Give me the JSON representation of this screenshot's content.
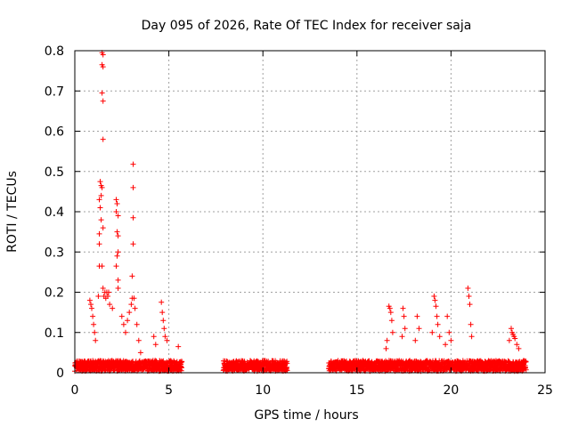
{
  "chart_data": {
    "type": "scatter",
    "title": "Day 095 of 2026, Rate Of TEC Index for receiver saja",
    "xlabel": "GPS time / hours",
    "ylabel": "ROTI / TECUs",
    "xlim": [
      0,
      25
    ],
    "ylim": [
      0,
      0.8
    ],
    "grid": true,
    "marker": "+",
    "color": "#ff0000",
    "x_ticks": [
      0,
      5,
      10,
      15,
      20,
      25
    ],
    "x_tick_labels": [
      "0",
      "5",
      "10",
      "15",
      "20",
      "25"
    ],
    "y_ticks": [
      0,
      0.1,
      0.2,
      0.3,
      0.4,
      0.5,
      0.6,
      0.7,
      0.8
    ],
    "y_tick_labels": [
      "0",
      "0.1",
      "0.2",
      "0.3",
      "0.4",
      "0.5",
      "0.6",
      "0.7",
      "0.8"
    ],
    "data_segments": [
      {
        "x_start": 0.0,
        "x_end": 5.7,
        "baseline": 0.02
      },
      {
        "x_start": 7.9,
        "x_end": 11.3,
        "baseline": 0.02
      },
      {
        "x_start": 13.5,
        "x_end": 24.0,
        "baseline": 0.02
      }
    ],
    "series": [
      {
        "name": "ROTI",
        "points": [
          [
            1.45,
            0.795
          ],
          [
            1.5,
            0.79
          ],
          [
            1.45,
            0.765
          ],
          [
            1.5,
            0.76
          ],
          [
            1.45,
            0.695
          ],
          [
            1.5,
            0.675
          ],
          [
            1.5,
            0.58
          ],
          [
            3.1,
            0.518
          ],
          [
            3.1,
            0.46
          ],
          [
            3.1,
            0.385
          ],
          [
            3.1,
            0.32
          ],
          [
            3.05,
            0.24
          ],
          [
            1.35,
            0.475
          ],
          [
            1.4,
            0.465
          ],
          [
            1.45,
            0.46
          ],
          [
            1.4,
            0.44
          ],
          [
            1.3,
            0.43
          ],
          [
            1.35,
            0.41
          ],
          [
            1.4,
            0.38
          ],
          [
            1.5,
            0.36
          ],
          [
            1.3,
            0.345
          ],
          [
            1.3,
            0.32
          ],
          [
            1.3,
            0.265
          ],
          [
            1.45,
            0.265
          ],
          [
            1.25,
            0.19
          ],
          [
            2.2,
            0.43
          ],
          [
            2.25,
            0.42
          ],
          [
            2.2,
            0.4
          ],
          [
            2.3,
            0.39
          ],
          [
            2.25,
            0.35
          ],
          [
            2.3,
            0.34
          ],
          [
            2.3,
            0.3
          ],
          [
            2.25,
            0.29
          ],
          [
            2.2,
            0.265
          ],
          [
            2.3,
            0.23
          ],
          [
            2.3,
            0.21
          ],
          [
            1.5,
            0.21
          ],
          [
            1.6,
            0.2
          ],
          [
            1.7,
            0.2
          ],
          [
            1.8,
            0.2
          ],
          [
            1.55,
            0.19
          ],
          [
            1.65,
            0.185
          ],
          [
            1.75,
            0.19
          ],
          [
            1.85,
            0.17
          ],
          [
            2.0,
            0.16
          ],
          [
            0.8,
            0.18
          ],
          [
            0.85,
            0.17
          ],
          [
            0.9,
            0.16
          ],
          [
            0.95,
            0.14
          ],
          [
            1.0,
            0.12
          ],
          [
            1.05,
            0.1
          ],
          [
            1.1,
            0.08
          ],
          [
            2.5,
            0.14
          ],
          [
            2.6,
            0.12
          ],
          [
            2.7,
            0.1
          ],
          [
            2.8,
            0.13
          ],
          [
            2.9,
            0.15
          ],
          [
            3.0,
            0.17
          ],
          [
            3.05,
            0.185
          ],
          [
            3.15,
            0.185
          ],
          [
            3.2,
            0.16
          ],
          [
            3.3,
            0.12
          ],
          [
            3.4,
            0.08
          ],
          [
            3.5,
            0.05
          ],
          [
            4.6,
            0.175
          ],
          [
            4.65,
            0.15
          ],
          [
            4.7,
            0.13
          ],
          [
            4.75,
            0.11
          ],
          [
            4.8,
            0.09
          ],
          [
            4.9,
            0.08
          ],
          [
            4.2,
            0.09
          ],
          [
            4.3,
            0.07
          ],
          [
            5.5,
            0.065
          ],
          [
            16.7,
            0.165
          ],
          [
            16.75,
            0.16
          ],
          [
            16.8,
            0.15
          ],
          [
            16.85,
            0.13
          ],
          [
            16.9,
            0.1
          ],
          [
            16.6,
            0.08
          ],
          [
            16.55,
            0.06
          ],
          [
            17.45,
            0.16
          ],
          [
            17.5,
            0.14
          ],
          [
            17.55,
            0.11
          ],
          [
            17.4,
            0.09
          ],
          [
            18.2,
            0.14
          ],
          [
            18.3,
            0.11
          ],
          [
            18.1,
            0.08
          ],
          [
            19.1,
            0.19
          ],
          [
            19.15,
            0.18
          ],
          [
            19.2,
            0.165
          ],
          [
            19.25,
            0.14
          ],
          [
            19.3,
            0.12
          ],
          [
            19.0,
            0.1
          ],
          [
            19.4,
            0.09
          ],
          [
            19.8,
            0.14
          ],
          [
            19.9,
            0.1
          ],
          [
            20.0,
            0.08
          ],
          [
            19.7,
            0.07
          ],
          [
            20.9,
            0.21
          ],
          [
            20.95,
            0.19
          ],
          [
            21.0,
            0.17
          ],
          [
            21.05,
            0.12
          ],
          [
            21.1,
            0.09
          ],
          [
            23.2,
            0.11
          ],
          [
            23.25,
            0.1
          ],
          [
            23.3,
            0.095
          ],
          [
            23.35,
            0.09
          ],
          [
            23.4,
            0.085
          ],
          [
            23.1,
            0.08
          ],
          [
            23.5,
            0.07
          ],
          [
            23.6,
            0.06
          ]
        ]
      }
    ]
  }
}
